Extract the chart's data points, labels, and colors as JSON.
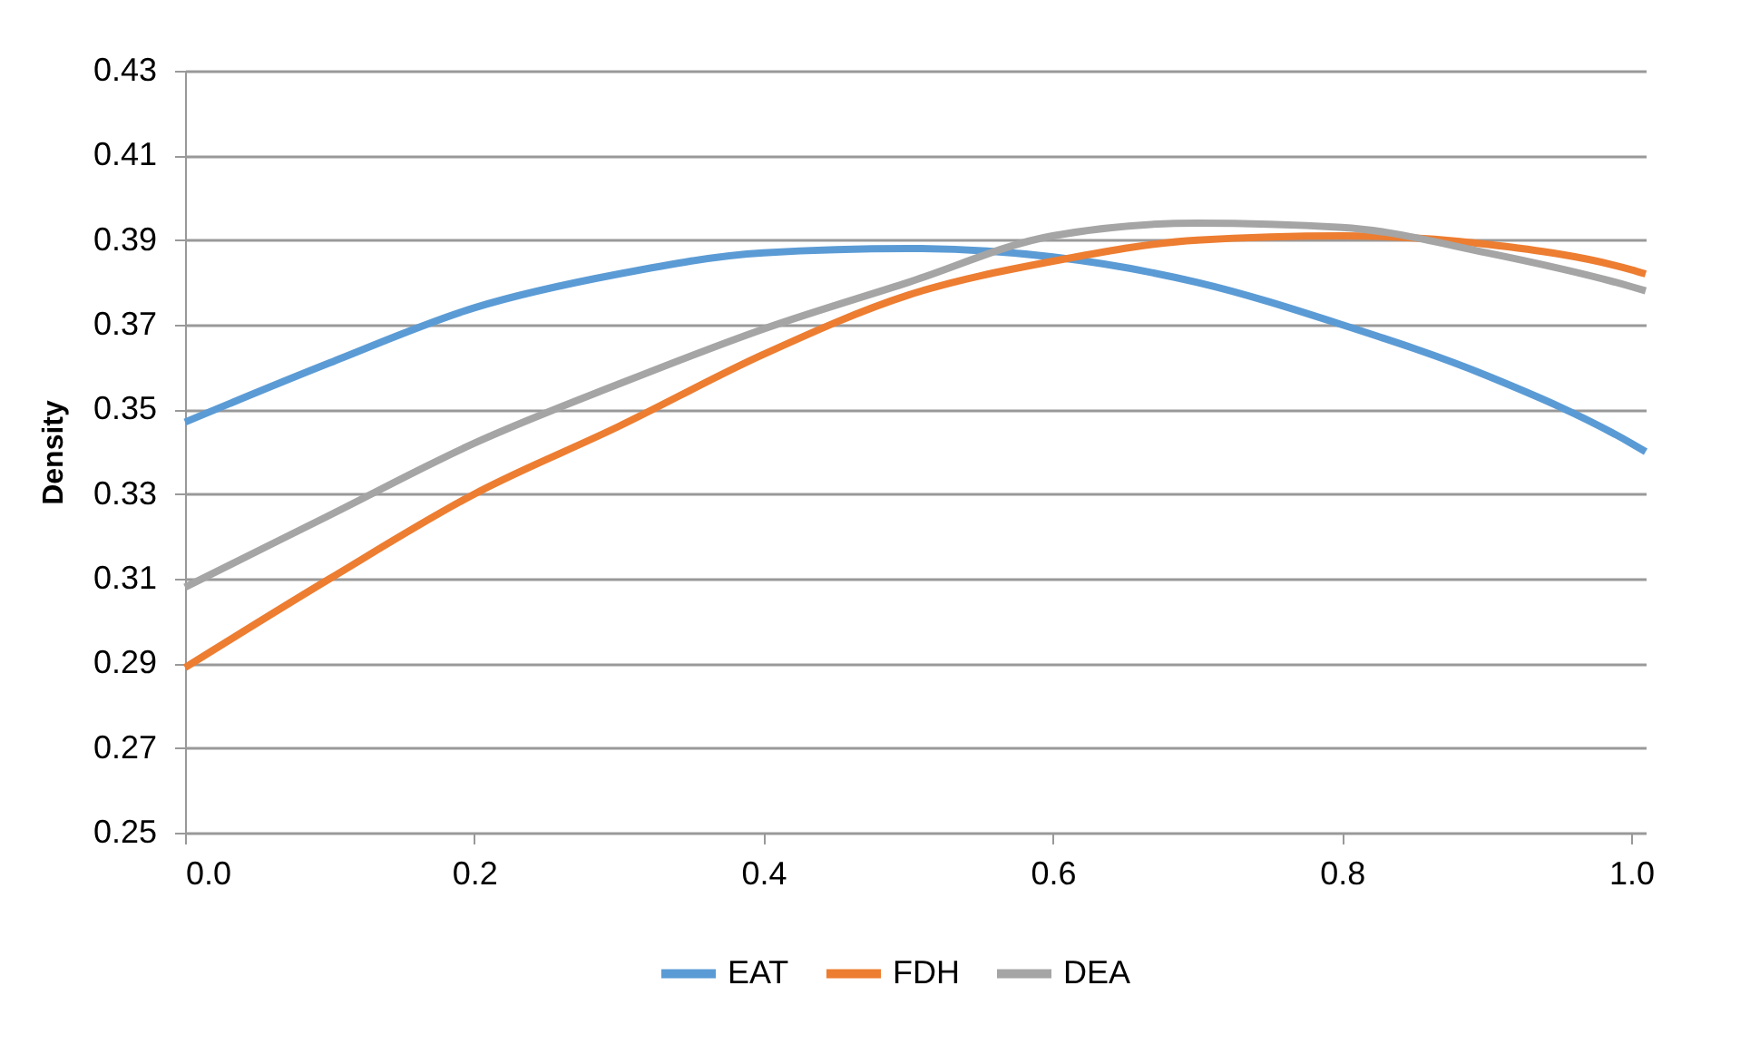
{
  "chart_data": {
    "type": "line",
    "ylabel": "Density",
    "x": [
      0,
      0.1,
      0.2,
      0.3,
      0.4,
      0.5,
      0.6,
      0.7,
      0.8,
      0.9,
      1.0,
      1.01
    ],
    "series": [
      {
        "name": "EAT",
        "color": "#5b9bd5",
        "values": [
          0.347,
          0.361,
          0.374,
          0.382,
          0.387,
          0.388,
          0.386,
          0.38,
          0.37,
          0.358,
          0.342,
          0.34
        ]
      },
      {
        "name": "FDH",
        "color": "#ed7d31",
        "values": [
          0.289,
          0.31,
          0.33,
          0.346,
          0.363,
          0.377,
          0.385,
          0.39,
          0.391,
          0.389,
          0.383,
          0.382
        ]
      },
      {
        "name": "DEA",
        "color": "#a5a5a5",
        "values": [
          0.308,
          0.325,
          0.342,
          0.356,
          0.369,
          0.38,
          0.391,
          0.394,
          0.393,
          0.387,
          0.379,
          0.378
        ]
      }
    ],
    "xlim": [
      0,
      1.01
    ],
    "xticks": [
      {
        "value": 0,
        "label": "0.0"
      },
      {
        "value": 0.2,
        "label": "0.2"
      },
      {
        "value": 0.4,
        "label": "0.4"
      },
      {
        "value": 0.6,
        "label": "0.6"
      },
      {
        "value": 0.8,
        "label": "0.8"
      },
      {
        "value": 1.0,
        "label": "1.0"
      }
    ],
    "ylim": [
      0.25,
      0.43
    ],
    "yticks": [
      0.25,
      0.27,
      0.29,
      0.31,
      0.33,
      0.35,
      0.37,
      0.39,
      0.41,
      0.43
    ],
    "grid": "y",
    "legend": "bottom",
    "marker": "none",
    "line_style": "solid"
  }
}
